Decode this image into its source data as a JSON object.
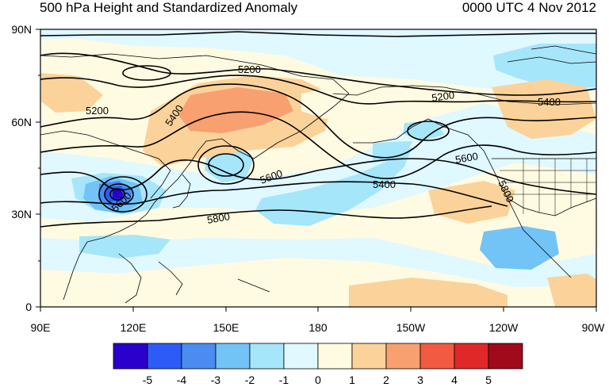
{
  "header": {
    "title": "500 hPa Height and Standardized Anomaly",
    "valid_time": "0000 UTC 4 Nov 2012"
  },
  "axes": {
    "lat_labels": [
      "90N",
      "60N",
      "30N",
      "0"
    ],
    "lon_labels": [
      "90E",
      "120E",
      "150E",
      "180",
      "150W",
      "120W",
      "90W"
    ]
  },
  "contour_labels": [
    "5200",
    "5200",
    "5400",
    "5400",
    "5400",
    "5600",
    "5600",
    "5600",
    "5800",
    "5800"
  ],
  "colorbar": {
    "labels": [
      "-5",
      "-4",
      "-3",
      "-2",
      "-1",
      "0",
      "1",
      "2",
      "3",
      "4",
      "5"
    ],
    "colors": [
      "#2a00cc",
      "#2c5cf5",
      "#4a8cf2",
      "#72c4f6",
      "#a6e6fb",
      "#e0f8ff",
      "#fffbe0",
      "#fbd29a",
      "#f8a070",
      "#f25a42",
      "#e02828",
      "#a00a1a"
    ]
  }
}
